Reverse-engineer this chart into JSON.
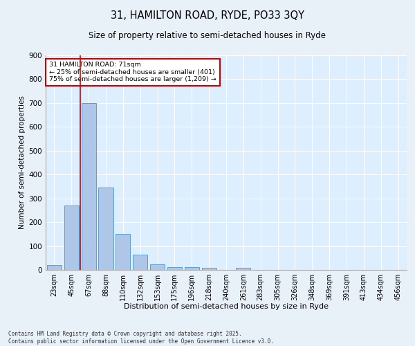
{
  "title": "31, HAMILTON ROAD, RYDE, PO33 3QY",
  "subtitle": "Size of property relative to semi-detached houses in Ryde",
  "xlabel": "Distribution of semi-detached houses by size in Ryde",
  "ylabel": "Number of semi-detached properties",
  "categories": [
    "23sqm",
    "45sqm",
    "67sqm",
    "88sqm",
    "110sqm",
    "132sqm",
    "153sqm",
    "175sqm",
    "196sqm",
    "218sqm",
    "240sqm",
    "261sqm",
    "283sqm",
    "305sqm",
    "326sqm",
    "348sqm",
    "369sqm",
    "391sqm",
    "413sqm",
    "434sqm",
    "456sqm"
  ],
  "values": [
    20,
    270,
    700,
    345,
    150,
    65,
    22,
    12,
    12,
    8,
    0,
    8,
    0,
    0,
    0,
    0,
    0,
    0,
    0,
    0,
    0
  ],
  "bar_color": "#aec6e8",
  "bar_edge_color": "#5a9fd4",
  "property_label": "31 HAMILTON ROAD: 71sqm",
  "pct_smaller": 25,
  "n_smaller": 401,
  "pct_larger": 75,
  "n_larger": 1209,
  "vline_bin_index": 1.5,
  "ylim": [
    0,
    900
  ],
  "yticks": [
    0,
    100,
    200,
    300,
    400,
    500,
    600,
    700,
    800,
    900
  ],
  "annotation_box_color": "#cc0000",
  "background_color": "#ddeeff",
  "grid_color": "#ffffff",
  "footer_line1": "Contains HM Land Registry data © Crown copyright and database right 2025.",
  "footer_line2": "Contains public sector information licensed under the Open Government Licence v3.0."
}
